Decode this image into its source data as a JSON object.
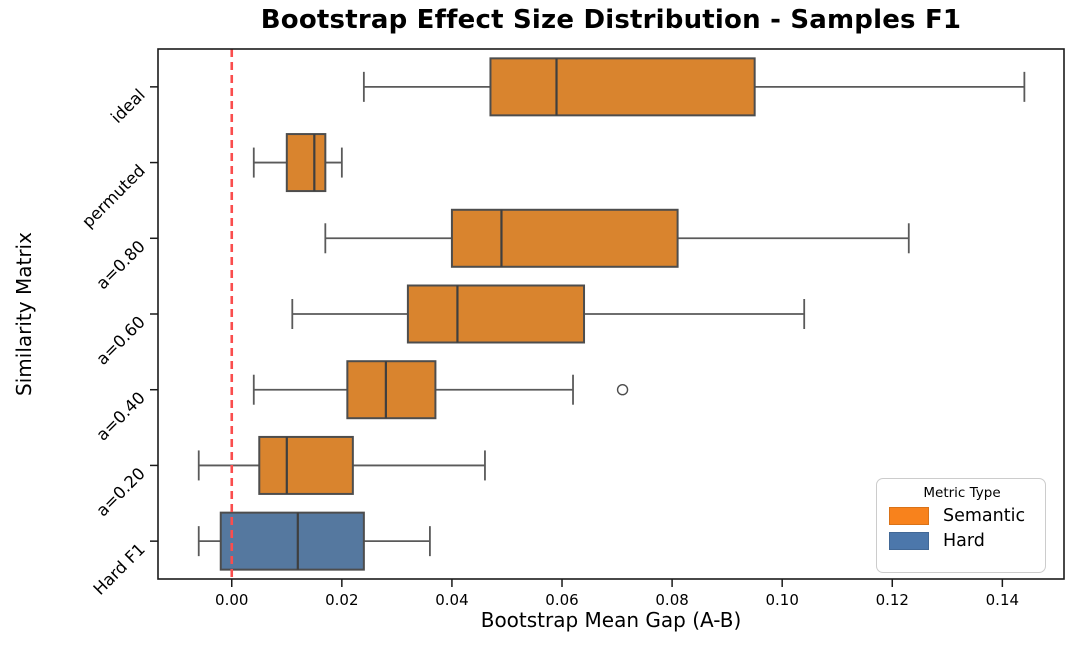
{
  "figure": {
    "background": "#ffffff"
  },
  "chart_data": {
    "type": "boxplot",
    "orientation": "horizontal",
    "title": "Bootstrap Effect Size Distribution - Samples F1",
    "xlabel": "Bootstrap Mean Gap (A-B)",
    "ylabel": "Similarity Matrix",
    "xlim": [
      -0.0134,
      0.1512
    ],
    "x_ticks": [
      0.0,
      0.02,
      0.04,
      0.06,
      0.08,
      0.1,
      0.12,
      0.14
    ],
    "x_tick_labels": [
      "0.00",
      "0.02",
      "0.04",
      "0.06",
      "0.08",
      "0.10",
      "0.12",
      "0.14"
    ],
    "categories": [
      "ideal",
      "permuted",
      "a=0.80",
      "a=0.60",
      "a=0.40",
      "a=0.20",
      "Hard F1"
    ],
    "y_tick_rotation_deg": 45,
    "grid": false,
    "reference_line": {
      "x": 0.0,
      "color": "#FA4D4D",
      "style": "dashed",
      "width": 2.6
    },
    "boxes": [
      {
        "category": "ideal",
        "group": "Semantic",
        "whisker_low": 0.024,
        "q1": 0.047,
        "median": 0.059,
        "q3": 0.095,
        "whisker_high": 0.144,
        "outliers": []
      },
      {
        "category": "permuted",
        "group": "Semantic",
        "whisker_low": 0.004,
        "q1": 0.01,
        "median": 0.015,
        "q3": 0.017,
        "whisker_high": 0.02,
        "outliers": []
      },
      {
        "category": "a=0.80",
        "group": "Semantic",
        "whisker_low": 0.017,
        "q1": 0.04,
        "median": 0.049,
        "q3": 0.081,
        "whisker_high": 0.123,
        "outliers": []
      },
      {
        "category": "a=0.60",
        "group": "Semantic",
        "whisker_low": 0.011,
        "q1": 0.032,
        "median": 0.041,
        "q3": 0.064,
        "whisker_high": 0.104,
        "outliers": []
      },
      {
        "category": "a=0.40",
        "group": "Semantic",
        "whisker_low": 0.004,
        "q1": 0.021,
        "median": 0.028,
        "q3": 0.037,
        "whisker_high": 0.062,
        "outliers": [
          0.071
        ]
      },
      {
        "category": "a=0.20",
        "group": "Semantic",
        "whisker_low": -0.006,
        "q1": 0.005,
        "median": 0.01,
        "q3": 0.022,
        "whisker_high": 0.046,
        "outliers": []
      },
      {
        "category": "Hard F1",
        "group": "Hard",
        "whisker_low": -0.006,
        "q1": -0.002,
        "median": 0.012,
        "q3": 0.024,
        "whisker_high": 0.036,
        "outliers": []
      }
    ],
    "legend": {
      "title": "Metric Type",
      "position": "lower right",
      "entries": [
        {
          "label": "Semantic",
          "color": "#F8821C",
          "box_fill": "#D9842E"
        },
        {
          "label": "Hard",
          "color": "#4C77AB",
          "box_fill": "#55789F"
        }
      ]
    },
    "style": {
      "box_edge": "#4D4D4D",
      "median_line": "#3F3F3F",
      "whisker": "#5A5A5A",
      "spine": "#1A1A1A",
      "tick_color": "#1A1A1A",
      "outlier_edge": "#4D4D4D"
    }
  }
}
